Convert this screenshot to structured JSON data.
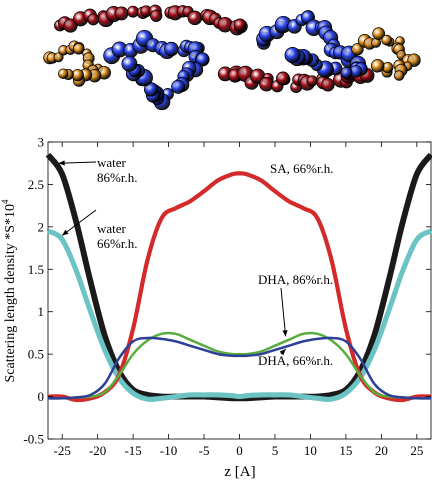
{
  "figure": {
    "illustration_colors": {
      "orange": "#e0901c",
      "red": "#a8121c",
      "blue": "#2c46ee"
    }
  },
  "chart_data": {
    "type": "line",
    "title": "",
    "xlabel": "z [A]",
    "ylabel": "Scattering length density *S*10",
    "ylabel_superscript": "4",
    "xlim": [
      -27,
      27
    ],
    "ylim": [
      -0.5,
      3
    ],
    "xticks": [
      -25,
      -20,
      -15,
      -10,
      -5,
      0,
      5,
      10,
      15,
      20,
      25
    ],
    "yticks": [
      -0.5,
      0,
      0.5,
      1,
      1.5,
      2,
      2.5,
      3
    ],
    "grid": false,
    "x": [
      -27,
      -25,
      -23,
      -21,
      -19,
      -17,
      -15,
      -13,
      -11,
      -9,
      -7,
      -5,
      -3,
      -1,
      0,
      1,
      3,
      5,
      7,
      9,
      11,
      13,
      15,
      17,
      19,
      21,
      23,
      25,
      27
    ],
    "series": [
      {
        "name": "water 86%r.h.",
        "color": "#1a1a1a",
        "band": 0.07,
        "values": [
          2.85,
          2.62,
          2.05,
          1.35,
          0.72,
          0.3,
          0.08,
          0.02,
          0.0,
          0.0,
          0.0,
          0.0,
          -0.01,
          -0.02,
          -0.02,
          -0.02,
          -0.01,
          0.0,
          0.0,
          0.0,
          0.0,
          0.02,
          0.08,
          0.3,
          0.72,
          1.35,
          2.05,
          2.62,
          2.85
        ]
      },
      {
        "name": "water 66%r.h.",
        "color": "#6cc3c3",
        "band": 0.06,
        "values": [
          1.95,
          1.85,
          1.48,
          1.0,
          0.55,
          0.22,
          0.04,
          -0.03,
          -0.02,
          0.0,
          0.02,
          0.02,
          0.02,
          0.01,
          0.0,
          0.01,
          0.02,
          0.02,
          0.02,
          0.0,
          -0.02,
          -0.03,
          0.04,
          0.22,
          0.55,
          1.0,
          1.48,
          1.85,
          1.95
        ]
      },
      {
        "name": "SA, 66%r.h.",
        "color": "#d42a2a",
        "band": 0.05,
        "values": [
          0.0,
          0.0,
          -0.04,
          -0.02,
          0.05,
          0.25,
          0.8,
          1.6,
          2.1,
          2.22,
          2.3,
          2.42,
          2.55,
          2.62,
          2.63,
          2.62,
          2.55,
          2.42,
          2.3,
          2.22,
          2.1,
          1.6,
          0.8,
          0.25,
          0.05,
          -0.02,
          -0.04,
          0.0,
          0.0
        ]
      },
      {
        "name": "DHA, 86%r.h.",
        "color": "#5aac3e",
        "band": 0.03,
        "values": [
          -0.02,
          -0.02,
          -0.01,
          0.0,
          0.05,
          0.25,
          0.5,
          0.66,
          0.74,
          0.74,
          0.67,
          0.6,
          0.53,
          0.5,
          0.5,
          0.5,
          0.53,
          0.6,
          0.67,
          0.74,
          0.74,
          0.66,
          0.5,
          0.25,
          0.05,
          0.0,
          -0.01,
          -0.02,
          -0.02
        ]
      },
      {
        "name": "DHA, 66%r.h.",
        "color": "#2e3f9a",
        "band": 0.02,
        "values": [
          -0.02,
          -0.02,
          -0.01,
          0.02,
          0.15,
          0.45,
          0.65,
          0.69,
          0.68,
          0.65,
          0.6,
          0.55,
          0.5,
          0.48,
          0.48,
          0.48,
          0.5,
          0.55,
          0.6,
          0.65,
          0.68,
          0.69,
          0.65,
          0.45,
          0.15,
          0.02,
          -0.01,
          -0.02,
          -0.02
        ]
      }
    ],
    "annotations": [
      {
        "lines": [
          "water",
          "86%r.h."
        ],
        "target_x": -25.5,
        "target_y": 2.75
      },
      {
        "lines": [
          "water",
          "66%r.h."
        ],
        "target_x": -25,
        "target_y": 1.9
      },
      {
        "lines": [
          "SA, 66%r.h."
        ],
        "target_x": null,
        "target_y": null
      },
      {
        "lines": [
          "DHA, 86%r.h."
        ],
        "target_x": 6.5,
        "target_y": 0.71
      },
      {
        "lines": [
          "DHA, 66%r.h."
        ],
        "target_x": 6.5,
        "target_y": 0.56
      }
    ]
  }
}
